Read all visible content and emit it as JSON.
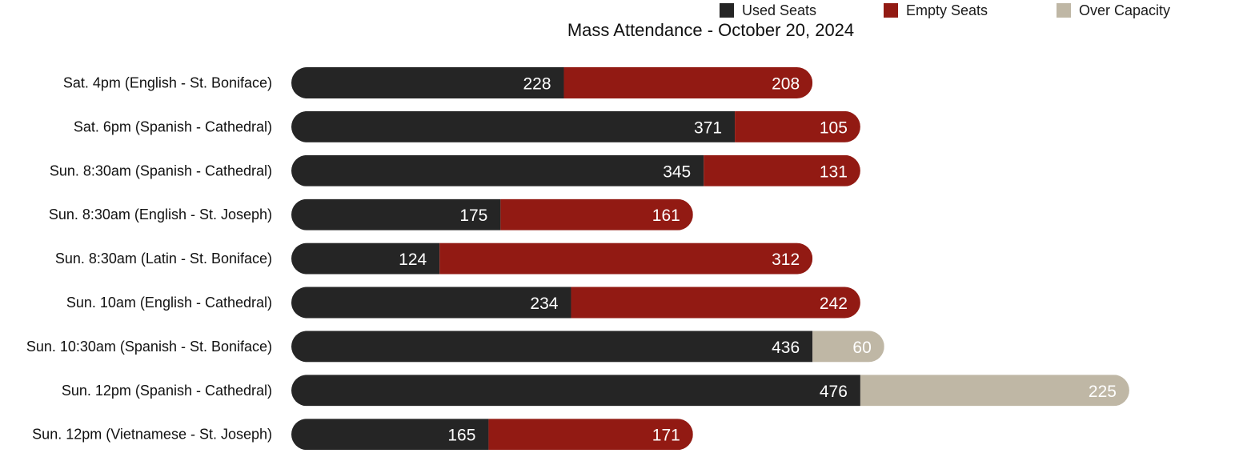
{
  "chart_data": {
    "type": "bar",
    "orientation": "horizontal",
    "stacked": true,
    "title": "Mass Attendance - October 20, 2024",
    "legend": {
      "placement": "top-right"
    },
    "categories": [
      "Sat. 4pm (English - St. Boniface)",
      "Sat. 6pm (Spanish - Cathedral)",
      "Sun. 8:30am (Spanish - Cathedral)",
      "Sun. 8:30am (English - St. Joseph)",
      "Sun. 8:30am (Latin - St. Boniface)",
      "Sun. 10am (English - Cathedral)",
      "Sun. 10:30am (Spanish - St. Boniface)",
      "Sun. 12pm (Spanish - Cathedral)",
      "Sun. 12pm (Vietnamese - St. Joseph)"
    ],
    "series": [
      {
        "name": "Used Seats",
        "color": "#252525",
        "values": [
          228,
          371,
          345,
          175,
          124,
          234,
          436,
          476,
          165
        ]
      },
      {
        "name": "Empty Seats",
        "color": "#921a13",
        "values": [
          208,
          105,
          131,
          161,
          312,
          242,
          null,
          null,
          171
        ]
      },
      {
        "name": "Over Capacity",
        "color": "#bfb7a5",
        "values": [
          null,
          null,
          null,
          null,
          null,
          null,
          60,
          225,
          null
        ]
      }
    ],
    "grid": false,
    "axes_visible": false
  }
}
